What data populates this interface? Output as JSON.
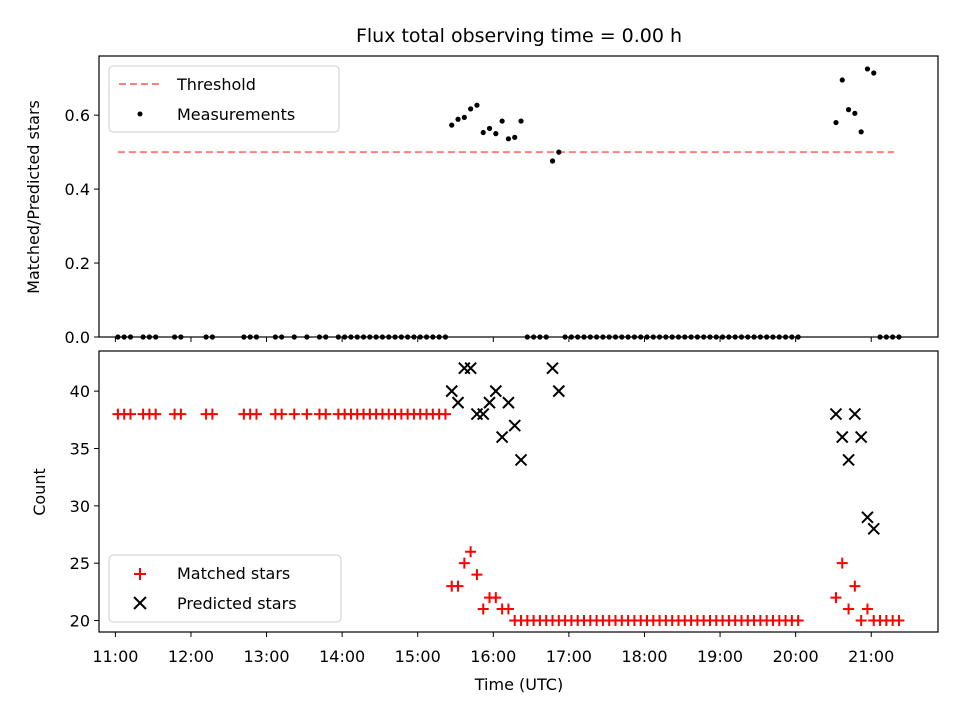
{
  "chart_data": [
    {
      "type": "scatter",
      "title": "Flux total observing time = 0.00 h",
      "xlabel": "",
      "ylabel": "Matched/Predicted stars",
      "xlim": [
        "10:47",
        "21:53"
      ],
      "ylim": [
        0,
        0.76
      ],
      "yticks": [
        0.0,
        0.2,
        0.4,
        0.6
      ],
      "ytick_labels": [
        "0.0",
        "0.2",
        "0.4",
        "0.6"
      ],
      "legend_position": "upper-left",
      "grid": false,
      "series": [
        {
          "name": "Threshold",
          "kind": "line-dashed",
          "color": "#ff7f7f",
          "x": [
            "11:02",
            "21:18"
          ],
          "y": [
            0.5,
            0.5
          ]
        },
        {
          "name": "Measurements",
          "kind": "scatter-dot",
          "color": "#000000",
          "x": [
            "11:02",
            "11:07",
            "11:12",
            "11:22",
            "11:27",
            "11:32",
            "11:47",
            "11:52",
            "12:12",
            "12:17",
            "12:42",
            "12:47",
            "12:52",
            "13:07",
            "13:12",
            "13:22",
            "13:32",
            "13:42",
            "13:47",
            "13:57",
            "14:02",
            "14:07",
            "14:12",
            "14:17",
            "14:22",
            "14:27",
            "14:32",
            "14:37",
            "14:42",
            "14:47",
            "14:52",
            "14:57",
            "15:02",
            "15:07",
            "15:12",
            "15:17",
            "15:22",
            "15:27",
            "15:32",
            "15:37",
            "15:42",
            "15:47",
            "15:52",
            "15:57",
            "16:02",
            "16:07",
            "16:12",
            "16:17",
            "16:22",
            "16:27",
            "16:32",
            "16:37",
            "16:42",
            "16:47",
            "16:52",
            "16:57",
            "17:02",
            "17:07",
            "17:12",
            "17:17",
            "17:22",
            "17:27",
            "17:32",
            "17:37",
            "17:42",
            "17:47",
            "17:52",
            "17:57",
            "18:02",
            "18:07",
            "18:12",
            "18:17",
            "18:22",
            "18:27",
            "18:32",
            "18:37",
            "18:42",
            "18:47",
            "18:52",
            "18:57",
            "19:02",
            "19:07",
            "19:12",
            "19:17",
            "19:22",
            "19:27",
            "19:32",
            "19:37",
            "19:42",
            "19:47",
            "19:52",
            "19:57",
            "20:02",
            "20:32",
            "20:37",
            "20:42",
            "20:47",
            "20:52",
            "20:57",
            "21:02",
            "21:07",
            "21:12",
            "21:17",
            "21:22"
          ],
          "y": [
            0,
            0,
            0,
            0,
            0,
            0,
            0,
            0,
            0,
            0,
            0,
            0,
            0,
            0,
            0,
            0,
            0,
            0,
            0,
            0,
            0,
            0,
            0,
            0,
            0,
            0,
            0,
            0,
            0,
            0,
            0,
            0,
            0,
            0,
            0,
            0,
            0,
            0.573,
            0.589,
            0.594,
            0.617,
            0.627,
            0.553,
            0.564,
            0.55,
            0.584,
            0.536,
            0.54,
            0.584,
            0,
            0,
            0,
            0,
            0.476,
            0.5,
            0,
            0,
            0,
            0,
            0,
            0,
            0,
            0,
            0,
            0,
            0,
            0,
            0,
            0,
            0,
            0,
            0,
            0,
            0,
            0,
            0,
            0,
            0,
            0,
            0,
            0,
            0,
            0,
            0,
            0,
            0,
            0,
            0,
            0,
            0,
            0,
            0,
            0,
            0.58,
            0.695,
            0.615,
            0.605,
            0.555,
            0.725,
            0.714,
            0,
            0,
            0,
            0
          ]
        }
      ]
    },
    {
      "type": "scatter",
      "title": "",
      "xlabel": "Time (UTC)",
      "ylabel": "Count",
      "xlim": [
        "10:47",
        "21:53"
      ],
      "ylim": [
        19,
        43.5
      ],
      "yticks": [
        20,
        25,
        30,
        35,
        40
      ],
      "ytick_labels": [
        "20",
        "25",
        "30",
        "35",
        "40"
      ],
      "xticks": [
        "11:00",
        "12:00",
        "13:00",
        "14:00",
        "15:00",
        "16:00",
        "17:00",
        "18:00",
        "19:00",
        "20:00",
        "21:00"
      ],
      "legend_position": "lower-left",
      "grid": false,
      "series": [
        {
          "name": "Matched stars",
          "kind": "scatter-plus",
          "color": "#ff0000",
          "x": [
            "11:02",
            "11:07",
            "11:12",
            "11:22",
            "11:27",
            "11:32",
            "11:47",
            "11:52",
            "12:12",
            "12:17",
            "12:42",
            "12:47",
            "12:52",
            "13:07",
            "13:12",
            "13:22",
            "13:32",
            "13:42",
            "13:47",
            "13:57",
            "14:02",
            "14:07",
            "14:12",
            "14:17",
            "14:22",
            "14:27",
            "14:32",
            "14:37",
            "14:42",
            "14:47",
            "14:52",
            "14:57",
            "15:02",
            "15:07",
            "15:12",
            "15:17",
            "15:22",
            "15:27",
            "15:32",
            "15:37",
            "15:42",
            "15:47",
            "15:52",
            "15:57",
            "16:02",
            "16:07",
            "16:12",
            "16:17",
            "16:22",
            "16:27",
            "16:32",
            "16:37",
            "16:42",
            "16:47",
            "16:52",
            "16:57",
            "17:02",
            "17:07",
            "17:12",
            "17:17",
            "17:22",
            "17:27",
            "17:32",
            "17:37",
            "17:42",
            "17:47",
            "17:52",
            "17:57",
            "18:02",
            "18:07",
            "18:12",
            "18:17",
            "18:22",
            "18:27",
            "18:32",
            "18:37",
            "18:42",
            "18:47",
            "18:52",
            "18:57",
            "19:02",
            "19:07",
            "19:12",
            "19:17",
            "19:22",
            "19:27",
            "19:32",
            "19:37",
            "19:42",
            "19:47",
            "19:52",
            "19:57",
            "20:02",
            "20:32",
            "20:37",
            "20:42",
            "20:47",
            "20:52",
            "20:57",
            "21:02",
            "21:07",
            "21:12",
            "21:17",
            "21:22"
          ],
          "y": [
            38,
            38,
            38,
            38,
            38,
            38,
            38,
            38,
            38,
            38,
            38,
            38,
            38,
            38,
            38,
            38,
            38,
            38,
            38,
            38,
            38,
            38,
            38,
            38,
            38,
            38,
            38,
            38,
            38,
            38,
            38,
            38,
            38,
            38,
            38,
            38,
            38,
            23,
            23,
            25,
            26,
            24,
            21,
            22,
            22,
            21,
            21,
            20,
            20,
            20,
            20,
            20,
            20,
            20,
            20,
            20,
            20,
            20,
            20,
            20,
            20,
            20,
            20,
            20,
            20,
            20,
            20,
            20,
            20,
            20,
            20,
            20,
            20,
            20,
            20,
            20,
            20,
            20,
            20,
            20,
            20,
            20,
            20,
            20,
            20,
            20,
            20,
            20,
            20,
            20,
            20,
            20,
            20,
            22,
            25,
            21,
            23,
            20,
            21,
            20,
            20,
            20,
            20,
            20
          ]
        },
        {
          "name": "Predicted stars",
          "kind": "scatter-x",
          "color": "#000000",
          "x": [
            "15:27",
            "15:32",
            "15:37",
            "15:42",
            "15:47",
            "15:52",
            "15:57",
            "16:02",
            "16:07",
            "16:12",
            "16:17",
            "16:22",
            "16:47",
            "16:52",
            "20:32",
            "20:37",
            "20:42",
            "20:47",
            "20:52",
            "20:57",
            "21:02"
          ],
          "y": [
            40,
            39,
            42,
            42,
            38,
            38,
            39,
            40,
            36,
            39,
            37,
            34,
            42,
            40,
            38,
            36,
            34,
            38,
            36,
            29,
            28
          ]
        }
      ]
    }
  ]
}
